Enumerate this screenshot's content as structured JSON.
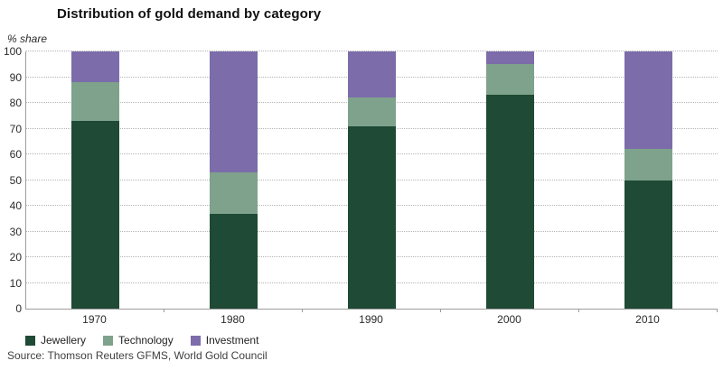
{
  "chart_data": {
    "type": "bar",
    "stacked": true,
    "title": "Distribution of gold demand by category",
    "ylabel": "% share",
    "xlabel": "",
    "ylim": [
      0,
      100
    ],
    "yticks": [
      0,
      10,
      20,
      30,
      40,
      50,
      60,
      70,
      80,
      90,
      100
    ],
    "grid": "horizontal-dotted",
    "legend_position": "bottom-left",
    "categories": [
      "1970",
      "1980",
      "1990",
      "2000",
      "2010"
    ],
    "series": [
      {
        "name": "Jewellery",
        "color": "#1f4a35",
        "values": [
          73,
          37,
          71,
          83,
          50
        ]
      },
      {
        "name": "Technology",
        "color": "#7ea28c",
        "values": [
          15,
          16,
          11,
          12,
          12
        ]
      },
      {
        "name": "Investment",
        "color": "#7c6caa",
        "values": [
          12,
          47,
          18,
          5,
          38
        ]
      }
    ]
  },
  "source": "Source: Thomson Reuters GFMS, World Gold Council",
  "colors": {
    "axis": "#9c9c9c",
    "gridline": "#b4b4b4",
    "title_text": "#111111",
    "tick_text": "#2b2b2b",
    "source_text": "#3f3f3f",
    "background": "#ffffff"
  }
}
